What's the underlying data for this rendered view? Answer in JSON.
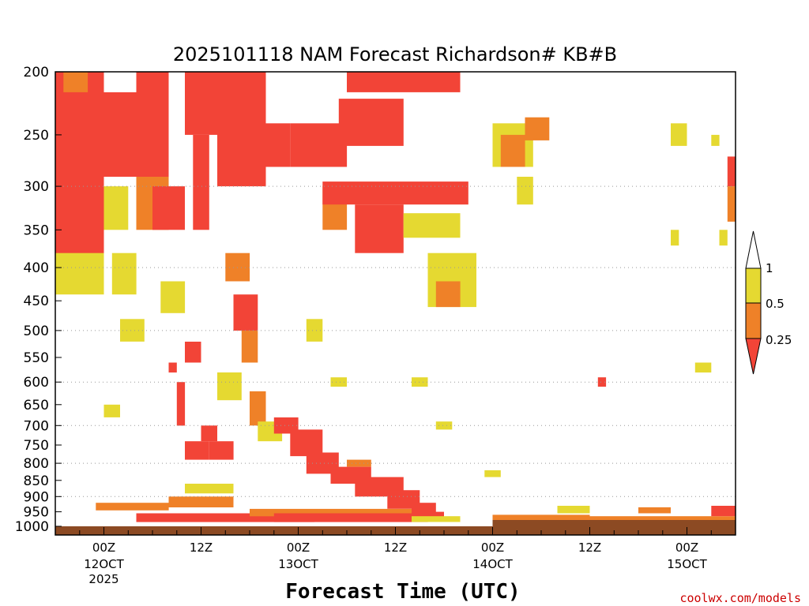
{
  "chart_data": {
    "type": "heatmap",
    "title": "2025101118 NAM Forecast Richardson# KB#B",
    "xlabel": "Forecast Time (UTC)",
    "ylabel": "",
    "y_scale": "log",
    "y_inverted": true,
    "ylim": [
      1000,
      200
    ],
    "y_ticks": [
      200,
      250,
      300,
      350,
      400,
      450,
      500,
      550,
      600,
      650,
      700,
      750,
      800,
      850,
      900,
      950,
      1000
    ],
    "y_gridlines": [
      300,
      400,
      500,
      600,
      700,
      800,
      900
    ],
    "x_ticks": [
      {
        "h": 6,
        "label": "00Z",
        "sub": "12OCT",
        "sub2": "2025"
      },
      {
        "h": 18,
        "label": "12Z",
        "sub": "",
        "sub2": ""
      },
      {
        "h": 30,
        "label": "00Z",
        "sub": "13OCT",
        "sub2": ""
      },
      {
        "h": 42,
        "label": "12Z",
        "sub": "",
        "sub2": ""
      },
      {
        "h": 54,
        "label": "00Z",
        "sub": "14OCT",
        "sub2": ""
      },
      {
        "h": 66,
        "label": "12Z",
        "sub": "",
        "sub2": ""
      },
      {
        "h": 78,
        "label": "00Z",
        "sub": "15OCT",
        "sub2": ""
      }
    ],
    "xlim_hours": [
      0,
      84
    ],
    "colorbar": {
      "labels": [
        "1",
        "0.5",
        "0.25"
      ],
      "bins": [
        {
          "range": ">1",
          "color": "#ffffff"
        },
        {
          "range": "0.5-1",
          "color": "#e5d931"
        },
        {
          "range": "0.25-0.5",
          "color": "#ef8128"
        },
        {
          "range": "<0.25",
          "color": "#f24437"
        }
      ]
    },
    "ground_color": "#8c4a23",
    "regions": [
      {
        "h0": 0,
        "h1": 6,
        "p0": 200,
        "p1": 400,
        "c": "r"
      },
      {
        "h0": 0,
        "h1": 6,
        "p0": 380,
        "p1": 440,
        "c": "y"
      },
      {
        "h0": 1,
        "h1": 4,
        "p0": 200,
        "p1": 215,
        "c": "o"
      },
      {
        "h0": 5,
        "h1": 10,
        "p0": 215,
        "p1": 290,
        "c": "r"
      },
      {
        "h0": 6,
        "h1": 9,
        "p0": 300,
        "p1": 350,
        "c": "y"
      },
      {
        "h0": 7,
        "h1": 10,
        "p0": 380,
        "p1": 440,
        "c": "y"
      },
      {
        "h0": 10,
        "h1": 14,
        "p0": 200,
        "p1": 290,
        "c": "r"
      },
      {
        "h0": 10,
        "h1": 14,
        "p0": 290,
        "p1": 350,
        "c": "o"
      },
      {
        "h0": 12,
        "h1": 16,
        "p0": 300,
        "p1": 350,
        "c": "r"
      },
      {
        "h0": 16,
        "h1": 20,
        "p0": 200,
        "p1": 250,
        "c": "r"
      },
      {
        "h0": 17,
        "h1": 19,
        "p0": 250,
        "p1": 350,
        "c": "r"
      },
      {
        "h0": 20,
        "h1": 26,
        "p0": 200,
        "p1": 300,
        "c": "r"
      },
      {
        "h0": 21,
        "h1": 24,
        "p0": 380,
        "p1": 420,
        "c": "o"
      },
      {
        "h0": 25,
        "h1": 29,
        "p0": 240,
        "p1": 280,
        "c": "r"
      },
      {
        "h0": 29,
        "h1": 36,
        "p0": 240,
        "p1": 280,
        "c": "r"
      },
      {
        "h0": 33,
        "h1": 36,
        "p0": 300,
        "p1": 350,
        "c": "o"
      },
      {
        "h0": 36,
        "h1": 50,
        "p0": 200,
        "p1": 215,
        "c": "r"
      },
      {
        "h0": 35,
        "h1": 43,
        "p0": 220,
        "p1": 260,
        "c": "r"
      },
      {
        "h0": 33,
        "h1": 51,
        "p0": 295,
        "p1": 320,
        "c": "r"
      },
      {
        "h0": 37,
        "h1": 43,
        "p0": 320,
        "p1": 380,
        "c": "r"
      },
      {
        "h0": 43,
        "h1": 50,
        "p0": 330,
        "p1": 360,
        "c": "y"
      },
      {
        "h0": 46,
        "h1": 52,
        "p0": 380,
        "p1": 460,
        "c": "y"
      },
      {
        "h0": 47,
        "h1": 50,
        "p0": 420,
        "p1": 460,
        "c": "o"
      },
      {
        "h0": 54,
        "h1": 59,
        "p0": 240,
        "p1": 280,
        "c": "y"
      },
      {
        "h0": 55,
        "h1": 58,
        "p0": 250,
        "p1": 280,
        "c": "o"
      },
      {
        "h0": 58,
        "h1": 61,
        "p0": 235,
        "p1": 255,
        "c": "o"
      },
      {
        "h0": 57,
        "h1": 59,
        "p0": 290,
        "p1": 320,
        "c": "y"
      },
      {
        "h0": 8,
        "h1": 11,
        "p0": 480,
        "p1": 520,
        "c": "y"
      },
      {
        "h0": 13,
        "h1": 16,
        "p0": 420,
        "p1": 470,
        "c": "y"
      },
      {
        "h0": 22,
        "h1": 25,
        "p0": 440,
        "p1": 500,
        "c": "r"
      },
      {
        "h0": 23,
        "h1": 25,
        "p0": 500,
        "p1": 560,
        "c": "o"
      },
      {
        "h0": 14,
        "h1": 15,
        "p0": 560,
        "p1": 580,
        "c": "r"
      },
      {
        "h0": 16,
        "h1": 18,
        "p0": 520,
        "p1": 560,
        "c": "r"
      },
      {
        "h0": 15,
        "h1": 16,
        "p0": 600,
        "p1": 700,
        "c": "r"
      },
      {
        "h0": 18,
        "h1": 20,
        "p0": 700,
        "p1": 740,
        "c": "r"
      },
      {
        "h0": 16,
        "h1": 19,
        "p0": 740,
        "p1": 790,
        "c": "r"
      },
      {
        "h0": 19,
        "h1": 22,
        "p0": 740,
        "p1": 790,
        "c": "r"
      },
      {
        "h0": 20,
        "h1": 23,
        "p0": 580,
        "p1": 640,
        "c": "y"
      },
      {
        "h0": 24,
        "h1": 26,
        "p0": 620,
        "p1": 700,
        "c": "o"
      },
      {
        "h0": 25,
        "h1": 28,
        "p0": 690,
        "p1": 740,
        "c": "y"
      },
      {
        "h0": 27,
        "h1": 30,
        "p0": 680,
        "p1": 720,
        "c": "r"
      },
      {
        "h0": 29,
        "h1": 33,
        "p0": 710,
        "p1": 780,
        "c": "r"
      },
      {
        "h0": 31,
        "h1": 35,
        "p0": 770,
        "p1": 830,
        "c": "r"
      },
      {
        "h0": 34,
        "h1": 39,
        "p0": 810,
        "p1": 860,
        "c": "r"
      },
      {
        "h0": 36,
        "h1": 39,
        "p0": 790,
        "p1": 810,
        "c": "o"
      },
      {
        "h0": 37,
        "h1": 43,
        "p0": 840,
        "p1": 900,
        "c": "r"
      },
      {
        "h0": 41,
        "h1": 45,
        "p0": 880,
        "p1": 940,
        "c": "r"
      },
      {
        "h0": 44,
        "h1": 47,
        "p0": 920,
        "p1": 960,
        "c": "r"
      },
      {
        "h0": 46,
        "h1": 48,
        "p0": 950,
        "p1": 985,
        "c": "r"
      },
      {
        "h0": 5,
        "h1": 14,
        "p0": 920,
        "p1": 945,
        "c": "o"
      },
      {
        "h0": 14,
        "h1": 22,
        "p0": 900,
        "p1": 935,
        "c": "o"
      },
      {
        "h0": 16,
        "h1": 22,
        "p0": 860,
        "p1": 890,
        "c": "y"
      },
      {
        "h0": 10,
        "h1": 32,
        "p0": 955,
        "p1": 985,
        "c": "r"
      },
      {
        "h0": 24,
        "h1": 44,
        "p0": 940,
        "p1": 965,
        "c": "o"
      },
      {
        "h0": 27,
        "h1": 46,
        "p0": 955,
        "p1": 985,
        "c": "r"
      },
      {
        "h0": 44,
        "h1": 50,
        "p0": 965,
        "p1": 985,
        "c": "y"
      },
      {
        "h0": 54,
        "h1": 66,
        "p0": 960,
        "p1": 985,
        "c": "o"
      },
      {
        "h0": 66,
        "h1": 84,
        "p0": 965,
        "p1": 985,
        "c": "o"
      },
      {
        "h0": 62,
        "h1": 66,
        "p0": 930,
        "p1": 955,
        "c": "y"
      },
      {
        "h0": 72,
        "h1": 76,
        "p0": 935,
        "p1": 955,
        "c": "o"
      },
      {
        "h0": 81,
        "h1": 84,
        "p0": 930,
        "p1": 965,
        "c": "r"
      },
      {
        "h0": 53,
        "h1": 55,
        "p0": 820,
        "p1": 840,
        "c": "y"
      },
      {
        "h0": 47,
        "h1": 49,
        "p0": 690,
        "p1": 710,
        "c": "y"
      },
      {
        "h0": 44,
        "h1": 46,
        "p0": 590,
        "p1": 610,
        "c": "y"
      },
      {
        "h0": 67,
        "h1": 68,
        "p0": 590,
        "p1": 610,
        "c": "r"
      },
      {
        "h0": 79,
        "h1": 81,
        "p0": 560,
        "p1": 580,
        "c": "y"
      },
      {
        "h0": 81,
        "h1": 82,
        "p0": 250,
        "p1": 260,
        "c": "y"
      },
      {
        "h0": 76,
        "h1": 78,
        "p0": 240,
        "p1": 260,
        "c": "y"
      },
      {
        "h0": 83,
        "h1": 84,
        "p0": 270,
        "p1": 300,
        "c": "r"
      },
      {
        "h0": 83,
        "h1": 84,
        "p0": 300,
        "p1": 340,
        "c": "o"
      },
      {
        "h0": 76,
        "h1": 77,
        "p0": 350,
        "p1": 370,
        "c": "y"
      },
      {
        "h0": 82,
        "h1": 83,
        "p0": 350,
        "p1": 370,
        "c": "y"
      },
      {
        "h0": 34,
        "h1": 36,
        "p0": 590,
        "p1": 610,
        "c": "y"
      },
      {
        "h0": 31,
        "h1": 33,
        "p0": 480,
        "p1": 520,
        "c": "y"
      },
      {
        "h0": 6,
        "h1": 8,
        "p0": 650,
        "p1": 680,
        "c": "y"
      }
    ]
  },
  "watermark": "coolwx.com/models"
}
